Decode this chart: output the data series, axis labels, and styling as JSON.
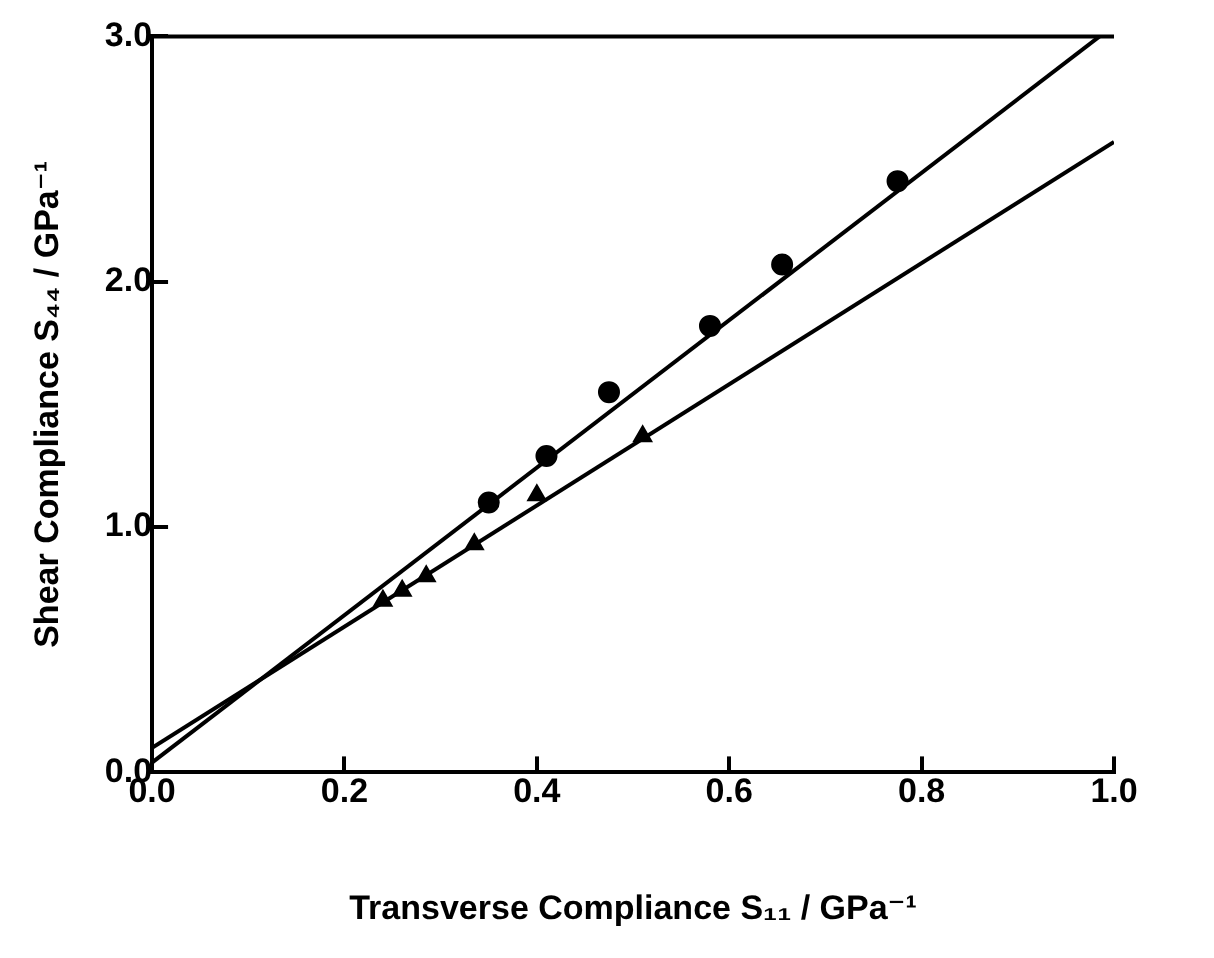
{
  "chart_data": {
    "type": "scatter",
    "xlabel": "Transverse Compliance S₁₁ / GPa⁻¹",
    "ylabel": "Shear Compliance S₄₄ / GPa⁻¹",
    "xlim": [
      0,
      1
    ],
    "ylim": [
      0,
      3
    ],
    "xticks": [
      {
        "value": 0,
        "label": "0.0"
      },
      0.2,
      0.4,
      0.6,
      0.8,
      {
        "value": 1,
        "label": "1.0"
      }
    ],
    "yticks": [
      {
        "value": 0,
        "label": "0.0"
      },
      {
        "value": 1,
        "label": "1.0"
      },
      {
        "value": 2,
        "label": "2.0"
      },
      {
        "value": 3,
        "label": "3.0"
      }
    ],
    "grid": false,
    "legend": false,
    "series": [
      {
        "type": "scatter",
        "marker": "circle",
        "color": "#000000",
        "x": [
          0.35,
          0.41,
          0.475,
          0.58,
          0.655,
          0.775
        ],
        "values": [
          1.1,
          1.29,
          1.55,
          1.82,
          2.07,
          2.41
        ]
      },
      {
        "type": "scatter",
        "marker": "triangle",
        "color": "#000000",
        "x": [
          0.24,
          0.26,
          0.285,
          0.335,
          0.4,
          0.51
        ],
        "values": [
          0.7,
          0.74,
          0.8,
          0.93,
          1.13,
          1.37
        ]
      },
      {
        "type": "line",
        "color": "#000000",
        "x": [
          0,
          0.985
        ],
        "values": [
          0.04,
          3.0
        ]
      },
      {
        "type": "line",
        "color": "#000000",
        "x": [
          0,
          1
        ],
        "values": [
          0.1,
          2.57
        ]
      }
    ]
  }
}
